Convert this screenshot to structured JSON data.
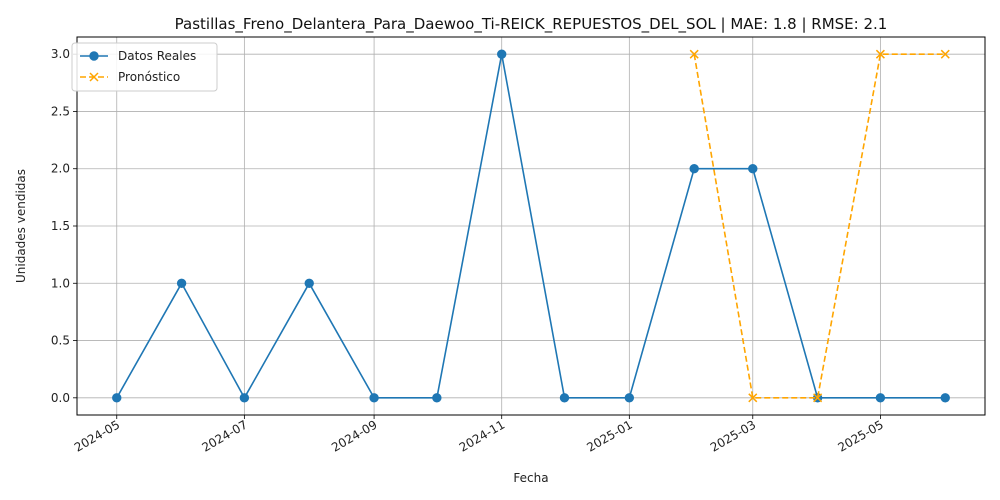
{
  "chart_data": {
    "type": "line",
    "title": "Pastillas_Freno_Delantera_Para_Daewoo_Ti-REICK_REPUESTOS_DEL_SOL | MAE: 1.8 | RMSE: 2.1",
    "xlabel": "Fecha",
    "ylabel": "Unidades vendidas",
    "ylim": [
      -0.15,
      3.15
    ],
    "xlim": [
      "2024-04-12",
      "2025-06-20"
    ],
    "grid": true,
    "legend_position": "top-left",
    "x_ticks": [
      "2024-05",
      "2024-07",
      "2024-09",
      "2024-11",
      "2025-01",
      "2025-03",
      "2025-05"
    ],
    "y_ticks": [
      "0.0",
      "0.5",
      "1.0",
      "1.5",
      "2.0",
      "2.5",
      "3.0"
    ],
    "series": [
      {
        "name": "Datos Reales",
        "color": "#1f77b4",
        "style": "solid",
        "marker": "circle",
        "x": [
          "2024-05-01",
          "2024-06-01",
          "2024-07-01",
          "2024-08-01",
          "2024-09-01",
          "2024-10-01",
          "2024-11-01",
          "2024-12-01",
          "2025-01-01",
          "2025-02-01",
          "2025-03-01",
          "2025-04-01",
          "2025-05-01",
          "2025-06-01"
        ],
        "values": [
          0,
          1,
          0,
          1,
          0,
          0,
          3,
          0,
          0,
          2,
          2,
          0,
          0,
          0
        ]
      },
      {
        "name": "Pronóstico",
        "color": "#ffa500",
        "style": "dashed",
        "marker": "x",
        "x": [
          "2025-02-01",
          "2025-03-01",
          "2025-04-01",
          "2025-05-01",
          "2025-06-01"
        ],
        "values": [
          3,
          0,
          0,
          3,
          3
        ]
      }
    ]
  }
}
